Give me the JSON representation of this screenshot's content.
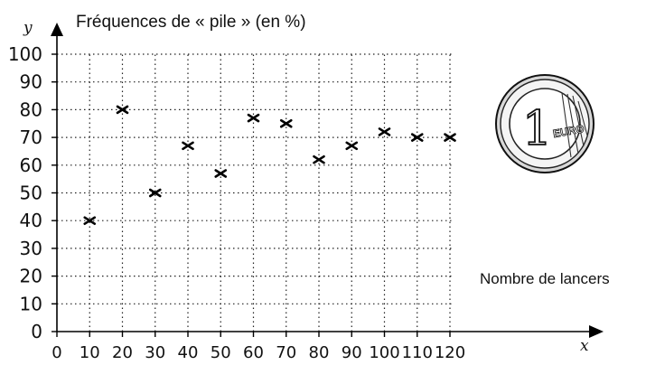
{
  "chart_data": {
    "type": "scatter",
    "title": "Fréquences de « pile » (en %)",
    "xlabel": "Nombre de lancers",
    "x_axis_letter": "x",
    "y_axis_letter": "y",
    "x": [
      10,
      20,
      30,
      40,
      50,
      60,
      70,
      80,
      90,
      100,
      110,
      120
    ],
    "y": [
      40,
      80,
      50,
      67,
      57,
      77,
      75,
      62,
      67,
      72,
      70,
      70
    ],
    "xlim": [
      0,
      120
    ],
    "ylim": [
      0,
      100
    ],
    "x_ticks": [
      "0",
      "10",
      "20",
      "30",
      "40",
      "50",
      "60",
      "70",
      "80",
      "90",
      "100",
      "110",
      "120"
    ],
    "y_ticks": [
      "0",
      "10",
      "20",
      "30",
      "40",
      "50",
      "60",
      "70",
      "80",
      "90",
      "100"
    ],
    "grid": true,
    "marker": "cross",
    "colors": {
      "ink": "#000000",
      "background": "#ffffff"
    }
  },
  "coin_image": {
    "icon": "one-euro-coin-icon",
    "numeral": "1",
    "text": "EURO"
  }
}
